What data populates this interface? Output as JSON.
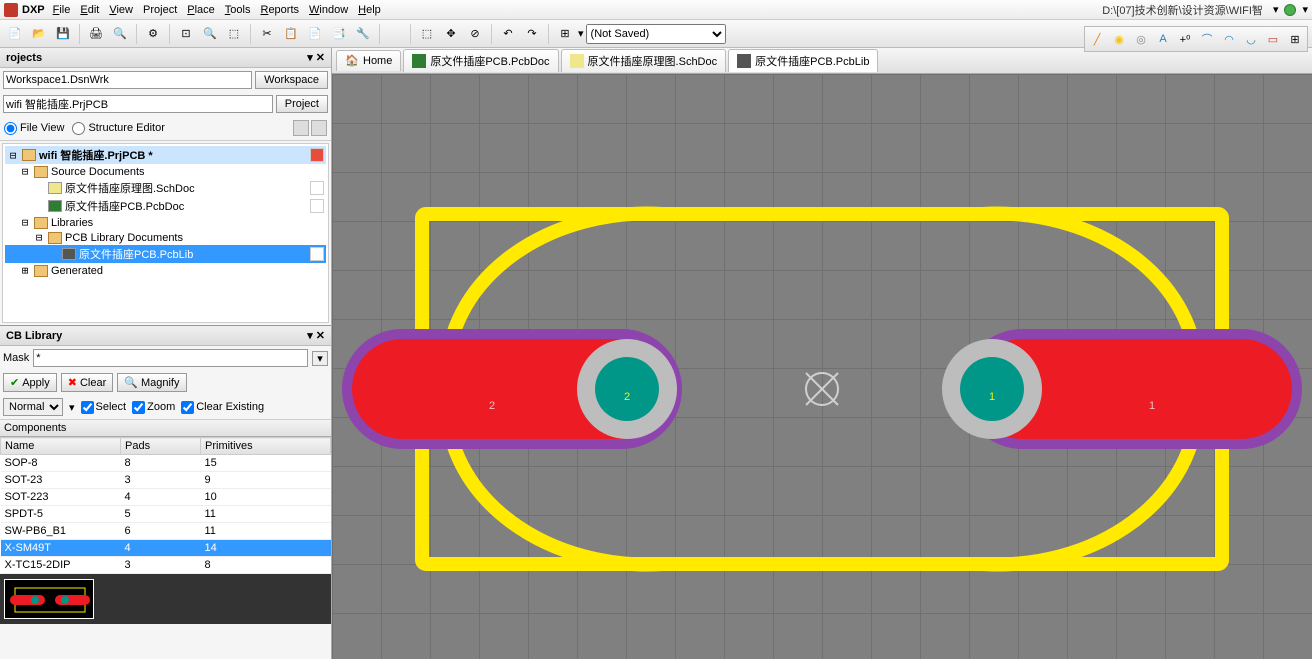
{
  "menu": {
    "dxp": "DXP",
    "items": [
      "File",
      "Edit",
      "View",
      "Project",
      "Place",
      "Tools",
      "Reports",
      "Window",
      "Help"
    ],
    "path": "D:\\[07]技术创新\\设计资源\\WIFI智"
  },
  "toolbar": {
    "notsaved": "(Not Saved)"
  },
  "projects": {
    "title": "rojects",
    "workspace_value": "Workspace1.DsnWrk",
    "workspace_btn": "Workspace",
    "project_value": "wifi 智能插座.PrjPCB",
    "project_btn": "Project",
    "fileview": "File View",
    "structure": "Structure Editor",
    "tree": {
      "root": "wifi 智能插座.PrjPCB *",
      "srcdocs": "Source Documents",
      "sch": "原文件插座原理图.SchDoc",
      "pcb": "原文件插座PCB.PcbDoc",
      "libs": "Libraries",
      "pcblibdocs": "PCB Library Documents",
      "pcblib": "原文件插座PCB.PcbLib",
      "generated": "Generated"
    }
  },
  "pcblib": {
    "title": "CB Library",
    "mask_label": "Mask",
    "mask_value": "*",
    "apply": "Apply",
    "clear": "Clear",
    "magnify": "Magnify",
    "normal": "Normal",
    "select": "Select",
    "zoom": "Zoom",
    "clearex": "Clear Existing",
    "components": "Components",
    "cols": [
      "Name",
      "Pads",
      "Primitives"
    ],
    "rows": [
      {
        "name": "SOP-8",
        "pads": "8",
        "prim": "15"
      },
      {
        "name": "SOT-23",
        "pads": "3",
        "prim": "9"
      },
      {
        "name": "SOT-223",
        "pads": "4",
        "prim": "10"
      },
      {
        "name": "SPDT-5",
        "pads": "5",
        "prim": "11"
      },
      {
        "name": "SW-PB6_B1",
        "pads": "6",
        "prim": "11"
      },
      {
        "name": "X-SM49T",
        "pads": "4",
        "prim": "14"
      },
      {
        "name": "X-TC15-2DIP",
        "pads": "3",
        "prim": "8"
      }
    ],
    "selected_row": 5
  },
  "tabs": {
    "home": "Home",
    "pcbdoc": "原文件插座PCB.PcbDoc",
    "schdoc": "原文件插座原理图.SchDoc",
    "pcblib": "原文件插座PCB.PcbLib"
  },
  "footprint": {
    "pad1_label": "1",
    "pad1_hole": "1",
    "pad2_label": "2",
    "pad2_hole": "2",
    "colors": {
      "pad_fill": "#ed1c24",
      "pad_outline": "#8e44ad",
      "hole_ring": "#bdbdbd",
      "hole_fill": "#009688",
      "silk": "#ffea00",
      "text": "#f5c0c0"
    }
  }
}
